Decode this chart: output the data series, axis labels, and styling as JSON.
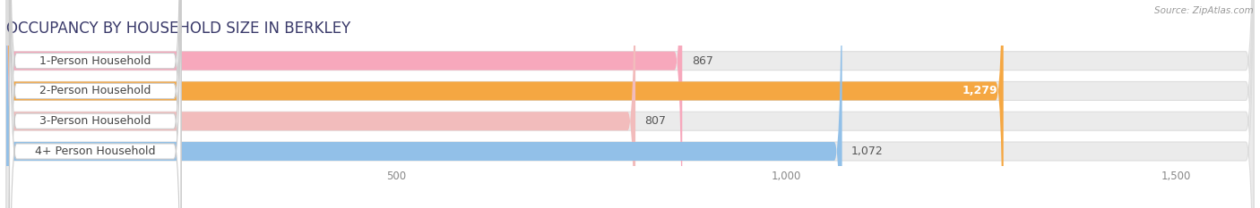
{
  "title": "OCCUPANCY BY HOUSEHOLD SIZE IN BERKLEY",
  "source": "Source: ZipAtlas.com",
  "categories": [
    "1-Person Household",
    "2-Person Household",
    "3-Person Household",
    "4+ Person Household"
  ],
  "values": [
    867,
    1279,
    807,
    1072
  ],
  "bar_colors": [
    "#f7a8bc",
    "#f5a742",
    "#f2bcbc",
    "#92c0e8"
  ],
  "background_color": "#ffffff",
  "bar_bg_color": "#ebebeb",
  "xlim_max": 1600,
  "xticks": [
    500,
    1000,
    1500
  ],
  "title_fontsize": 12,
  "label_fontsize": 9,
  "value_fontsize": 9
}
